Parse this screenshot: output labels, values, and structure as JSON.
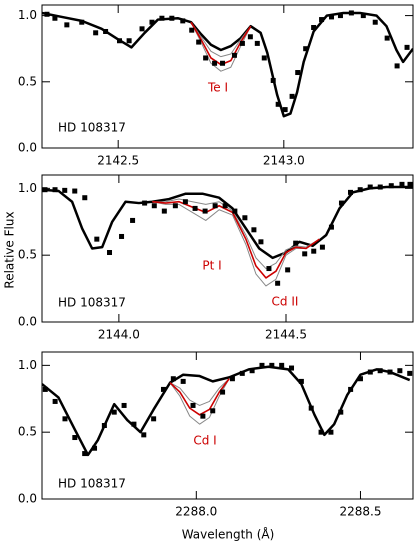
{
  "xlabel": "Wavelength (Å)",
  "ylabel": "Relative Flux",
  "chart_data": [
    {
      "type": "line",
      "xlim": [
        2142.27,
        2143.39
      ],
      "ylim": [
        0,
        1.08
      ],
      "xticks": [
        2142.5,
        {
          "value": 2143,
          "label": "2143.0"
        }
      ],
      "yticks": [
        {
          "value": 0,
          "label": "0.0"
        },
        {
          "value": 0.5,
          "label": "0.5"
        },
        {
          "value": 1,
          "label": "1.0"
        }
      ],
      "annotations": [
        "HD 108317",
        "Te I"
      ],
      "points": {
        "color": "#000000",
        "x": [
          2142.285,
          2142.309,
          2142.345,
          2142.39,
          2142.432,
          2142.462,
          2142.504,
          2142.533,
          2142.572,
          2142.602,
          2142.632,
          2142.662,
          2142.695,
          2142.722,
          2142.743,
          2142.764,
          2142.791,
          2142.815,
          2142.851,
          2142.875,
          2142.899,
          2142.92,
          2142.941,
          2142.968,
          2142.983,
          2143.004,
          2143.025,
          2143.042,
          2143.066,
          2143.09,
          2143.114,
          2143.144,
          2143.171,
          2143.204,
          2143.24,
          2143.276,
          2143.312,
          2143.342,
          2143.372
        ],
        "values": [
          1.01,
          0.98,
          0.93,
          0.95,
          0.87,
          0.88,
          0.81,
          0.81,
          0.9,
          0.95,
          0.98,
          0.98,
          0.96,
          0.89,
          0.8,
          0.68,
          0.64,
          0.64,
          0.7,
          0.79,
          0.84,
          0.79,
          0.68,
          0.51,
          0.33,
          0.29,
          0.39,
          0.57,
          0.75,
          0.91,
          0.97,
          0.99,
          1.0,
          1.02,
          1.0,
          0.95,
          0.83,
          0.62,
          0.76
        ]
      },
      "series": [
        {
          "color": "#000000",
          "width": 2.5,
          "x": [
            2142.27,
            2142.33,
            2142.39,
            2142.45,
            2142.5,
            2142.54,
            2142.58,
            2142.62,
            2142.68,
            2142.72,
            2142.75,
            2142.78,
            2142.81,
            2142.84,
            2142.87,
            2142.9,
            2142.93,
            2142.95,
            2142.98,
            2143.0,
            2143.02,
            2143.04,
            2143.06,
            2143.09,
            2143.13,
            2143.18,
            2143.23,
            2143.28,
            2143.31,
            2143.34,
            2143.36,
            2143.39
          ],
          "values": [
            1.02,
            0.99,
            0.96,
            0.9,
            0.82,
            0.76,
            0.87,
            0.97,
            0.98,
            0.95,
            0.86,
            0.78,
            0.74,
            0.77,
            0.83,
            0.92,
            0.87,
            0.72,
            0.4,
            0.24,
            0.26,
            0.42,
            0.65,
            0.88,
            1.0,
            1.02,
            1.02,
            1.0,
            0.92,
            0.74,
            0.65,
            0.75
          ]
        },
        {
          "color": "#888888",
          "width": 1,
          "x": [
            2142.72,
            2142.75,
            2142.78,
            2142.81,
            2142.84,
            2142.87,
            2142.9
          ],
          "values": [
            0.95,
            0.84,
            0.73,
            0.69,
            0.71,
            0.82,
            0.92
          ]
        },
        {
          "color": "#888888",
          "width": 1,
          "x": [
            2142.72,
            2142.75,
            2142.78,
            2142.81,
            2142.84,
            2142.87,
            2142.9
          ],
          "values": [
            0.95,
            0.8,
            0.64,
            0.58,
            0.61,
            0.77,
            0.92
          ]
        },
        {
          "color": "#cc0000",
          "width": 1.6,
          "x": [
            2142.72,
            2142.75,
            2142.78,
            2142.81,
            2142.84,
            2142.87,
            2142.9
          ],
          "values": [
            0.95,
            0.82,
            0.68,
            0.63,
            0.66,
            0.8,
            0.92
          ]
        }
      ]
    },
    {
      "type": "line",
      "xlim": [
        2143.77,
        2144.88
      ],
      "ylim": [
        0,
        1.1
      ],
      "xticks": [
        {
          "value": 2144,
          "label": "2144.0"
        },
        2144.5
      ],
      "yticks": [
        {
          "value": 0,
          "label": "0.0"
        },
        {
          "value": 0.5,
          "label": "0.5"
        },
        {
          "value": 1,
          "label": "1.0"
        }
      ],
      "annotations": [
        "HD 108317",
        "Pt I",
        "Cd II"
      ],
      "points": {
        "color": "#000000",
        "x": [
          2143.779,
          2143.809,
          2143.838,
          2143.868,
          2143.898,
          2143.934,
          2143.972,
          2144.008,
          2144.041,
          2144.077,
          2144.106,
          2144.136,
          2144.169,
          2144.199,
          2144.228,
          2144.258,
          2144.288,
          2144.318,
          2144.347,
          2144.377,
          2144.404,
          2144.425,
          2144.449,
          2144.475,
          2144.505,
          2144.529,
          2144.556,
          2144.583,
          2144.609,
          2144.636,
          2144.666,
          2144.693,
          2144.722,
          2144.752,
          2144.782,
          2144.815,
          2144.847,
          2144.871
        ],
        "values": [
          0.99,
          0.99,
          0.985,
          0.98,
          0.93,
          0.62,
          0.52,
          0.64,
          0.76,
          0.89,
          0.87,
          0.83,
          0.87,
          0.9,
          0.85,
          0.83,
          0.87,
          0.87,
          0.83,
          0.78,
          0.69,
          0.6,
          0.4,
          0.29,
          0.39,
          0.59,
          0.51,
          0.53,
          0.56,
          0.71,
          0.89,
          0.97,
          0.99,
          1.01,
          1.01,
          1.02,
          1.03,
          1.03
        ]
      },
      "series": [
        {
          "color": "#000000",
          "width": 2.5,
          "x": [
            2143.77,
            2143.82,
            2143.86,
            2143.89,
            2143.92,
            2143.95,
            2143.98,
            2144.02,
            2144.06,
            2144.1,
            2144.15,
            2144.2,
            2144.25,
            2144.3,
            2144.34,
            2144.38,
            2144.42,
            2144.46,
            2144.5,
            2144.54,
            2144.58,
            2144.62,
            2144.66,
            2144.7,
            2144.75,
            2144.8,
            2144.88
          ],
          "values": [
            0.99,
            0.98,
            0.9,
            0.7,
            0.55,
            0.56,
            0.75,
            0.9,
            0.89,
            0.9,
            0.92,
            0.96,
            0.96,
            0.93,
            0.85,
            0.7,
            0.55,
            0.48,
            0.52,
            0.6,
            0.57,
            0.65,
            0.85,
            0.97,
            1.0,
            1.01,
            1.01
          ]
        },
        {
          "color": "#888888",
          "width": 1,
          "x": [
            2144.1,
            2144.14,
            2144.18,
            2144.22,
            2144.26,
            2144.3,
            2144.34,
            2144.38,
            2144.41,
            2144.44,
            2144.47,
            2144.5,
            2144.53,
            2144.56,
            2144.6
          ],
          "values": [
            0.9,
            0.9,
            0.92,
            0.9,
            0.88,
            0.9,
            0.83,
            0.65,
            0.48,
            0.4,
            0.44,
            0.54,
            0.57,
            0.56,
            0.62
          ]
        },
        {
          "color": "#888888",
          "width": 1,
          "x": [
            2144.1,
            2144.14,
            2144.18,
            2144.22,
            2144.26,
            2144.3,
            2144.34,
            2144.38,
            2144.41,
            2144.44,
            2144.47,
            2144.5,
            2144.53,
            2144.56,
            2144.6
          ],
          "values": [
            0.9,
            0.88,
            0.88,
            0.82,
            0.76,
            0.84,
            0.8,
            0.58,
            0.36,
            0.27,
            0.32,
            0.5,
            0.55,
            0.55,
            0.62
          ]
        },
        {
          "color": "#cc0000",
          "width": 1.6,
          "x": [
            2144.1,
            2144.14,
            2144.18,
            2144.22,
            2144.26,
            2144.3,
            2144.34,
            2144.38,
            2144.41,
            2144.44,
            2144.47,
            2144.5,
            2144.53,
            2144.56,
            2144.6
          ],
          "values": [
            0.9,
            0.89,
            0.9,
            0.86,
            0.82,
            0.87,
            0.82,
            0.62,
            0.42,
            0.33,
            0.38,
            0.52,
            0.56,
            0.55,
            0.62
          ]
        }
      ]
    },
    {
      "type": "line",
      "xlim": [
        2287.53,
        2288.66
      ],
      "ylim": [
        0,
        1.1
      ],
      "xticks": [
        {
          "value": 2288,
          "label": "2288.0"
        },
        2288.5
      ],
      "yticks": [
        {
          "value": 0,
          "label": "0.0"
        },
        {
          "value": 0.5,
          "label": "0.5"
        },
        {
          "value": 1,
          "label": "1.0"
        }
      ],
      "annotations": [
        "HD 108317",
        "Cd I"
      ],
      "points": {
        "color": "#000000",
        "x": [
          2287.54,
          2287.57,
          2287.6,
          2287.63,
          2287.66,
          2287.69,
          2287.72,
          2287.75,
          2287.78,
          2287.81,
          2287.84,
          2287.87,
          2287.9,
          2287.93,
          2287.96,
          2287.99,
          2288.02,
          2288.05,
          2288.08,
          2288.11,
          2288.14,
          2288.17,
          2288.2,
          2288.23,
          2288.26,
          2288.29,
          2288.32,
          2288.35,
          2288.38,
          2288.41,
          2288.44,
          2288.47,
          2288.5,
          2288.53,
          2288.56,
          2288.59,
          2288.62,
          2288.65
        ],
        "values": [
          0.82,
          0.73,
          0.6,
          0.46,
          0.34,
          0.38,
          0.55,
          0.65,
          0.7,
          0.56,
          0.48,
          0.6,
          0.82,
          0.9,
          0.88,
          0.7,
          0.62,
          0.66,
          0.8,
          0.9,
          0.94,
          0.96,
          1.0,
          1.0,
          1.0,
          0.98,
          0.88,
          0.68,
          0.5,
          0.5,
          0.65,
          0.82,
          0.9,
          0.95,
          0.96,
          0.95,
          0.96,
          0.94
        ]
      },
      "series": [
        {
          "color": "#000000",
          "width": 2.5,
          "x": [
            2287.53,
            2287.58,
            2287.63,
            2287.67,
            2287.7,
            2287.75,
            2287.79,
            2287.83,
            2287.87,
            2287.92,
            2287.96,
            2288.01,
            2288.05,
            2288.1,
            2288.16,
            2288.22,
            2288.28,
            2288.32,
            2288.36,
            2288.39,
            2288.42,
            2288.46,
            2288.5,
            2288.55,
            2288.59,
            2288.65
          ],
          "values": [
            0.86,
            0.76,
            0.52,
            0.33,
            0.44,
            0.71,
            0.59,
            0.5,
            0.67,
            0.87,
            0.93,
            0.92,
            0.88,
            0.91,
            0.97,
            0.99,
            0.97,
            0.86,
            0.63,
            0.48,
            0.56,
            0.78,
            0.93,
            0.97,
            0.95,
            0.89
          ]
        },
        {
          "color": "#888888",
          "width": 1,
          "x": [
            2287.92,
            2287.95,
            2287.98,
            2288.01,
            2288.04,
            2288.07,
            2288.1
          ],
          "values": [
            0.87,
            0.83,
            0.74,
            0.7,
            0.73,
            0.83,
            0.9
          ]
        },
        {
          "color": "#888888",
          "width": 1,
          "x": [
            2287.92,
            2287.95,
            2287.98,
            2288.01,
            2288.04,
            2288.07,
            2288.1
          ],
          "values": [
            0.87,
            0.77,
            0.62,
            0.56,
            0.61,
            0.77,
            0.9
          ]
        },
        {
          "color": "#cc0000",
          "width": 1.6,
          "x": [
            2287.92,
            2287.95,
            2287.98,
            2288.01,
            2288.04,
            2288.07,
            2288.1
          ],
          "values": [
            0.87,
            0.8,
            0.68,
            0.63,
            0.67,
            0.8,
            0.9
          ]
        }
      ]
    }
  ]
}
